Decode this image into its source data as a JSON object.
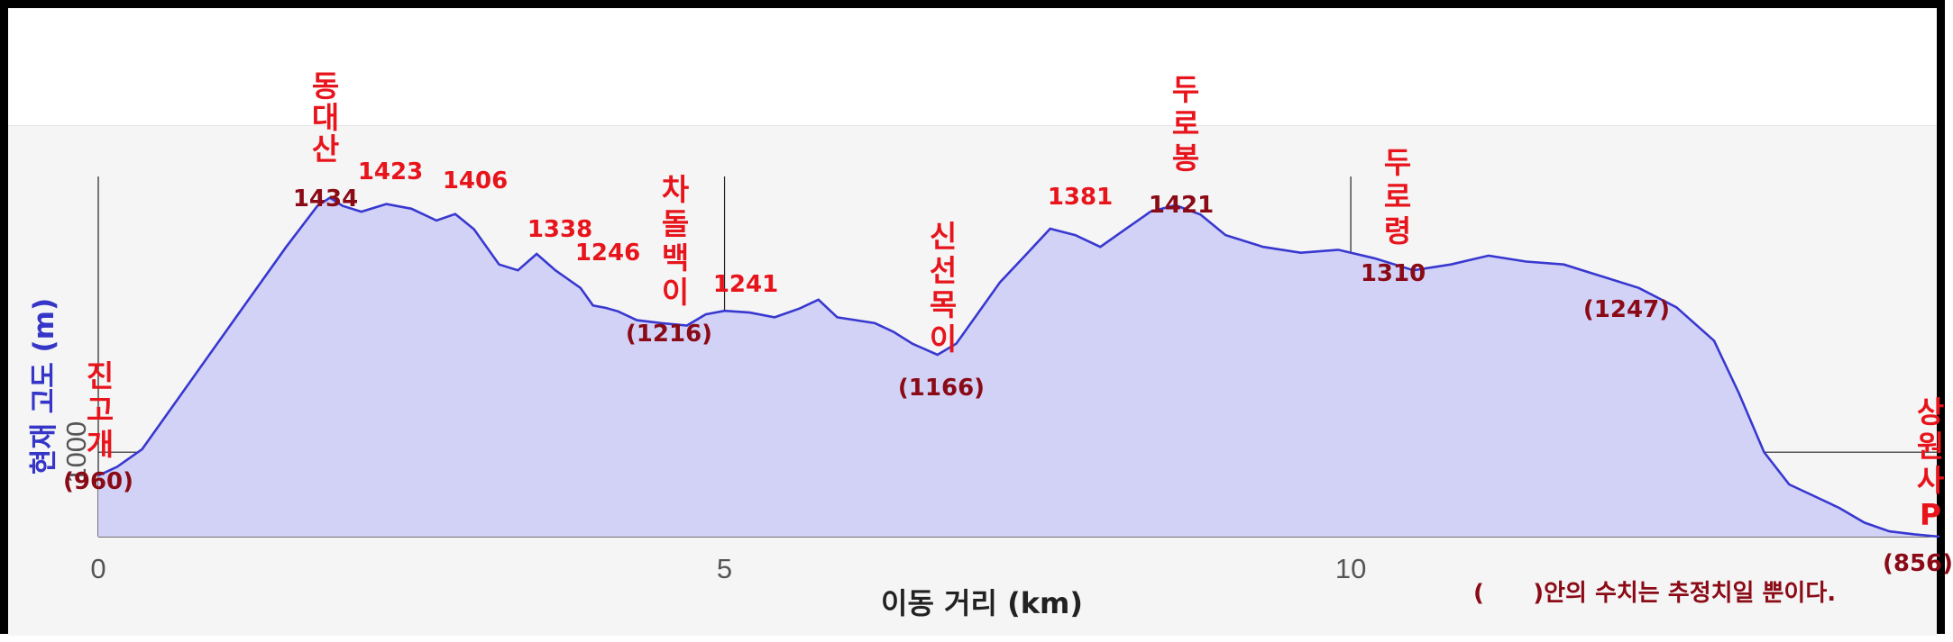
{
  "chart_data": {
    "type": "area",
    "xlabel": "이동 거리 (km)",
    "ylabel": "현재 고도 (m)",
    "xlim": [
      0,
      14.7
    ],
    "ylim": [
      856,
      1470
    ],
    "x_ticks": [
      "0",
      "5",
      "10"
    ],
    "y_ticks": [
      "1000"
    ],
    "grid": "on",
    "colors": {
      "line": "#3838d0",
      "fill": "#d2d2f7",
      "label": "#e8141c",
      "estimate": "#8a0a16"
    },
    "series": [
      {
        "x": [
          0,
          0.15,
          0.35,
          0.6,
          0.9,
          1.2,
          1.5,
          1.75,
          1.85,
          1.95,
          2.1,
          2.3,
          2.5,
          2.7,
          2.85,
          3.0,
          3.2,
          3.35,
          3.5,
          3.65,
          3.75,
          3.85,
          3.95,
          4.05,
          4.15,
          4.3,
          4.5,
          4.7,
          4.85,
          5.0,
          5.2,
          5.4,
          5.6,
          5.75,
          5.9,
          6.05,
          6.2,
          6.35,
          6.5,
          6.7,
          6.85,
          7.0,
          7.2,
          7.4,
          7.6,
          7.8,
          8.0,
          8.2,
          8.4,
          8.6,
          8.8,
          9.0,
          9.3,
          9.6,
          9.9,
          10.2,
          10.5,
          10.8,
          11.1,
          11.4,
          11.7,
          12.0,
          12.3,
          12.6,
          12.9,
          13.1,
          13.3,
          13.5,
          13.7,
          13.9,
          14.1,
          14.3,
          14.5,
          14.7
        ],
        "values": [
          960,
          975,
          1005,
          1080,
          1170,
          1260,
          1350,
          1420,
          1434,
          1420,
          1410,
          1423,
          1415,
          1395,
          1406,
          1380,
          1320,
          1310,
          1338,
          1310,
          1295,
          1280,
          1250,
          1246,
          1240,
          1225,
          1220,
          1216,
          1235,
          1241,
          1238,
          1230,
          1245,
          1260,
          1230,
          1225,
          1220,
          1205,
          1185,
          1166,
          1185,
          1230,
          1290,
          1335,
          1381,
          1370,
          1350,
          1380,
          1410,
          1421,
          1405,
          1370,
          1350,
          1340,
          1345,
          1330,
          1310,
          1320,
          1335,
          1325,
          1320,
          1300,
          1280,
          1247,
          1190,
          1100,
          1000,
          945,
          925,
          905,
          880,
          865,
          860,
          856
        ]
      }
    ],
    "peak_labels": [
      {
        "name": "진고개",
        "elevation": "(960)"
      },
      {
        "name": "동대산",
        "elevation": "1434"
      },
      {
        "name": "",
        "elevation": "1423"
      },
      {
        "name": "",
        "elevation": "1406"
      },
      {
        "name": "",
        "elevation": "1338"
      },
      {
        "name": "",
        "elevation": "1246"
      },
      {
        "name": "차돌백이",
        "elevation": "(1216)"
      },
      {
        "name": "",
        "elevation": "1241"
      },
      {
        "name": "신선목이",
        "elevation": "(1166)"
      },
      {
        "name": "",
        "elevation": "1381"
      },
      {
        "name": "두로봉",
        "elevation": "1421"
      },
      {
        "name": "두로령",
        "elevation": "1310"
      },
      {
        "name": "",
        "elevation": "(1247)"
      },
      {
        "name": "상원사P",
        "elevation": "(856)"
      }
    ],
    "annotation": "(      )안의 수치는 추정치일 뿐이다."
  }
}
